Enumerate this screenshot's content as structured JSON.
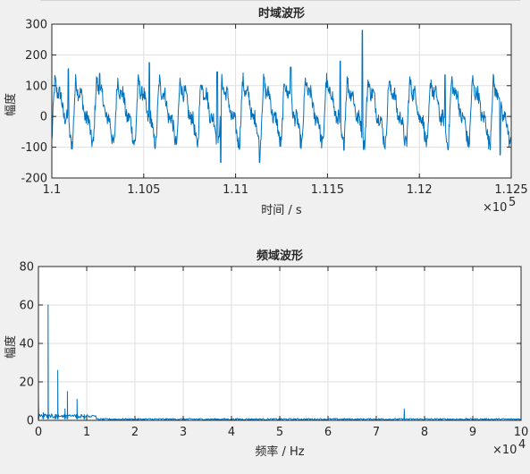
{
  "chart_data": [
    {
      "type": "line",
      "title": "时域波形",
      "xlabel": "时间 / s",
      "ylabel": "幅度",
      "x_exponent_label": "×10",
      "x_exponent": "5",
      "xlim": [
        110000,
        112500
      ],
      "ylim": [
        -200,
        300
      ],
      "xticks": [
        110000,
        110500,
        111000,
        111500,
        112000,
        112500
      ],
      "xtick_labels": [
        "1.1",
        "1.105",
        "1.11",
        "1.115",
        "1.12",
        "1.125"
      ],
      "yticks": [
        -200,
        -100,
        0,
        100,
        200,
        300
      ],
      "ytick_labels": [
        "-200",
        "-100",
        "0",
        "100",
        "200",
        "300"
      ],
      "grid": true,
      "color": "#0072bd",
      "signal": {
        "period_samples": 50,
        "approx_amplitude": 140,
        "noise_amplitude": 25,
        "points": 1100,
        "peaks": [
          {
            "x": 110090,
            "y": 155
          },
          {
            "x": 110260,
            "y": 140
          },
          {
            "x": 110530,
            "y": 175
          },
          {
            "x": 110900,
            "y": 145
          },
          {
            "x": 111300,
            "y": 160
          },
          {
            "x": 111570,
            "y": 180
          },
          {
            "x": 111690,
            "y": 280
          },
          {
            "x": 112140,
            "y": 135
          }
        ],
        "troughs": [
          {
            "x": 110920,
            "y": -150
          },
          {
            "x": 111130,
            "y": -150
          },
          {
            "x": 112440,
            "y": -125
          }
        ]
      }
    },
    {
      "type": "line",
      "title": "频域波形",
      "xlabel": "频率 / Hz",
      "ylabel": "幅度",
      "x_exponent_label": "×10",
      "x_exponent": "4",
      "xlim": [
        0,
        100000
      ],
      "ylim": [
        0,
        80
      ],
      "xticks": [
        0,
        10000,
        20000,
        30000,
        40000,
        50000,
        60000,
        70000,
        80000,
        90000,
        100000
      ],
      "xtick_labels": [
        "0",
        "1",
        "2",
        "3",
        "4",
        "5",
        "6",
        "7",
        "8",
        "9",
        "10"
      ],
      "yticks": [
        0,
        20,
        40,
        60,
        80
      ],
      "ytick_labels": [
        "0",
        "20",
        "40",
        "60",
        "80"
      ],
      "grid": true,
      "color": "#0072bd",
      "spectrum": {
        "points": 800,
        "noise_floor": 0.8,
        "peaks": [
          {
            "x": 0,
            "y": 13
          },
          {
            "x": 1000,
            "y": 4
          },
          {
            "x": 2000,
            "y": 60
          },
          {
            "x": 3500,
            "y": 3
          },
          {
            "x": 4000,
            "y": 26
          },
          {
            "x": 5500,
            "y": 6
          },
          {
            "x": 6000,
            "y": 15
          },
          {
            "x": 8000,
            "y": 11
          },
          {
            "x": 9500,
            "y": 3
          },
          {
            "x": 75800,
            "y": 6
          }
        ]
      }
    }
  ]
}
